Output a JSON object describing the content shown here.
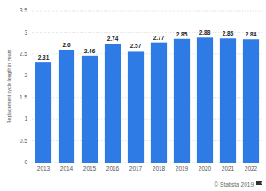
{
  "chart_data": {
    "type": "bar",
    "y_label": "Replacement cycle length in years",
    "source": "© Statista 2019",
    "categories": [
      "2013",
      "2014",
      "2015",
      "2016",
      "2017",
      "2018",
      "2019",
      "2020",
      "2021",
      "2022"
    ],
    "values": [
      2.31,
      2.6,
      2.46,
      2.74,
      2.57,
      2.77,
      2.85,
      2.88,
      2.86,
      2.84
    ],
    "color": "#2f7be6",
    "ylim": [
      0,
      3.5
    ],
    "yticks": [
      0,
      0.5,
      1,
      1.5,
      2,
      2.5,
      3,
      3.5
    ],
    "grid": true,
    "data_labels": true
  }
}
